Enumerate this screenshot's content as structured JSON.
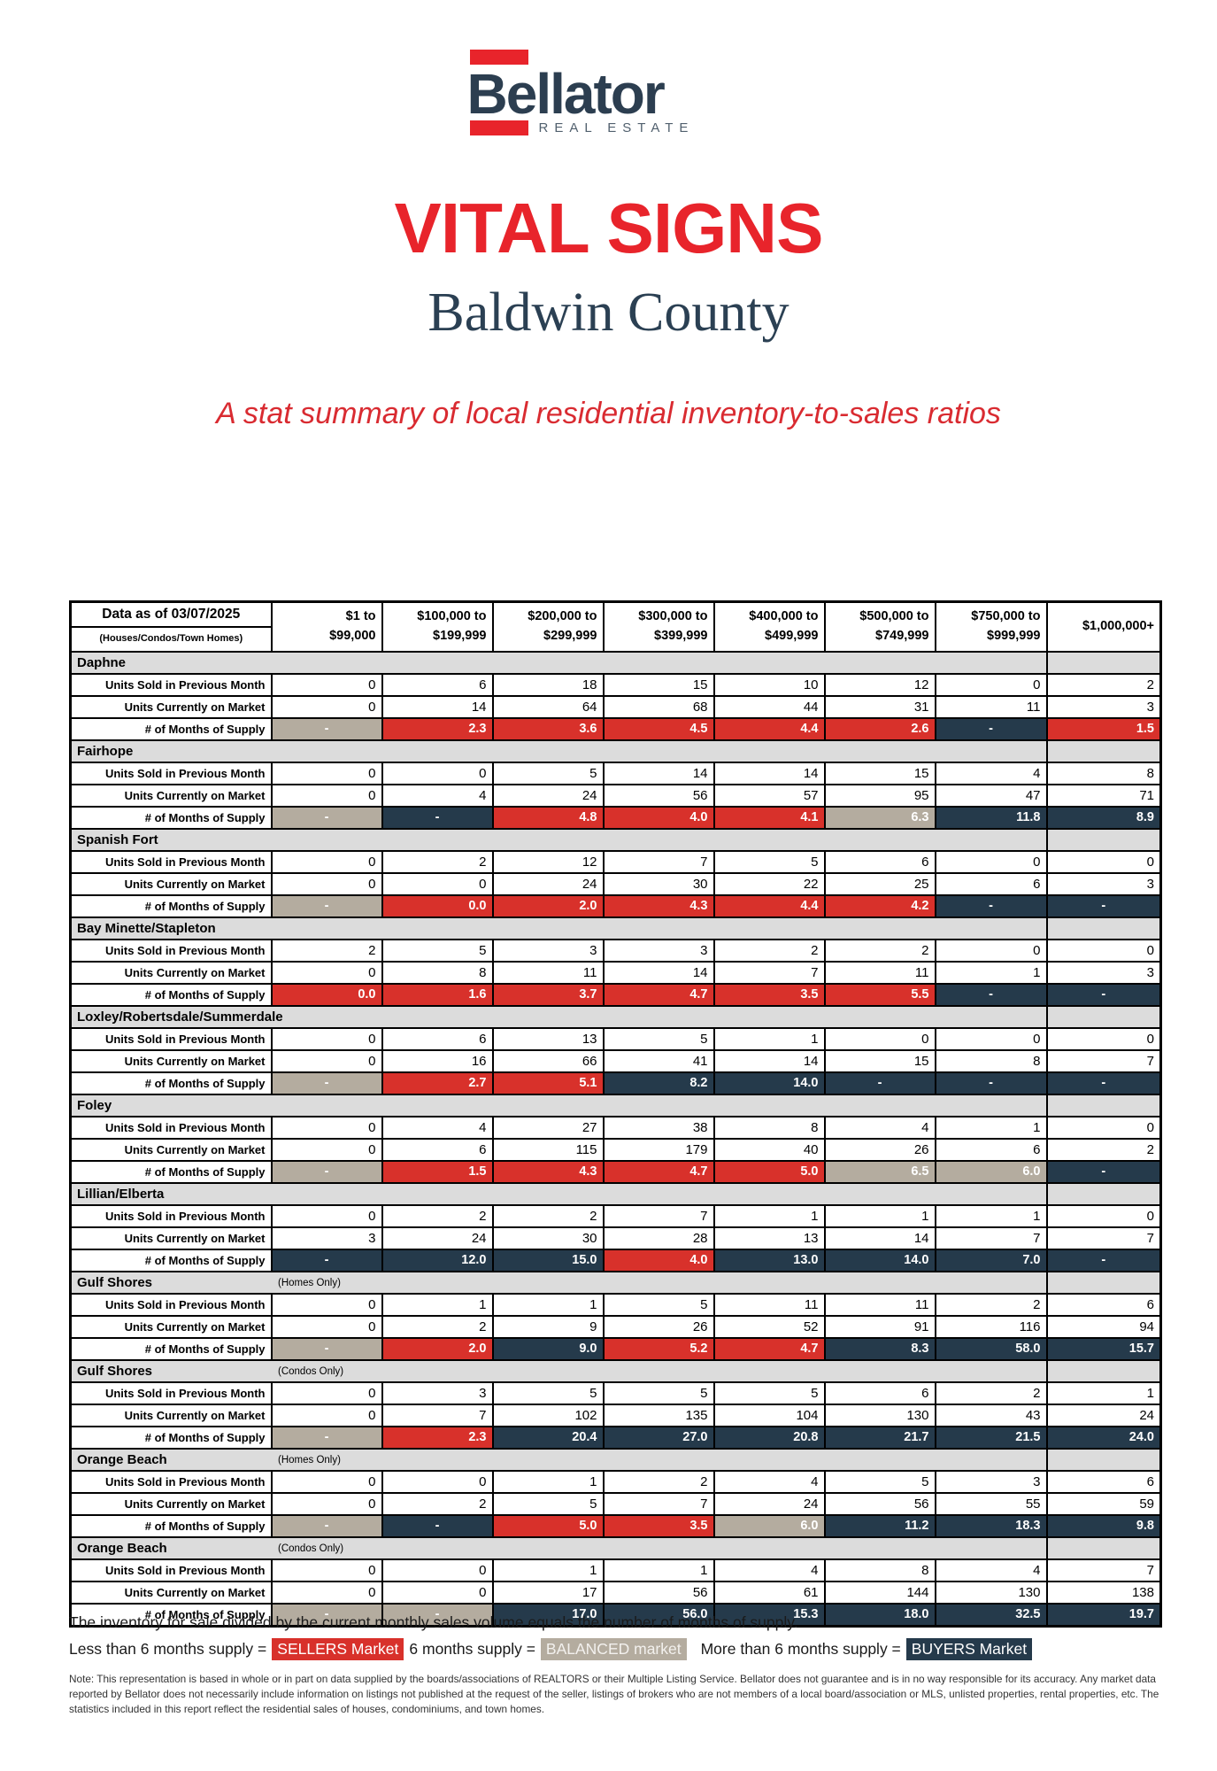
{
  "brand": {
    "name": "Bellator",
    "tagline": "REAL ESTATE"
  },
  "title": "VITAL SIGNS",
  "subtitle": "Baldwin County",
  "tagline": "A stat summary of local residential inventory-to-sales ratios",
  "colors": {
    "sellers_red": "#D8312B",
    "buyers_navy": "#253A4B",
    "balanced_taupe": "#B4AC9F",
    "accent_red": "#E8242B",
    "brand_navy": "#2C3E50",
    "section_gray": "#DCDCDC"
  },
  "table": {
    "header_label_line1": "Data as of 03/07/2025",
    "header_label_line2": "(Houses/Condos/Town Homes)",
    "price_columns": [
      {
        "line1": "$1 to",
        "line2": "$99,000"
      },
      {
        "line1": "$100,000 to",
        "line2": "$199,999"
      },
      {
        "line1": "$200,000 to",
        "line2": "$299,999"
      },
      {
        "line1": "$300,000 to",
        "line2": "$399,999"
      },
      {
        "line1": "$400,000 to",
        "line2": "$499,999"
      },
      {
        "line1": "$500,000 to",
        "line2": "$749,999"
      },
      {
        "line1": "$750,000 to",
        "line2": "$999,999"
      },
      {
        "line1": "$1,000,000+",
        "line2": ""
      }
    ],
    "row_labels": {
      "sold": "Units Sold in Previous Month",
      "market": "Units Currently on Market",
      "supply": "# of Months of Supply"
    },
    "sections": [
      {
        "name": "Daphne",
        "note": "",
        "sold": [
          0,
          6,
          18,
          15,
          10,
          12,
          0,
          2
        ],
        "market": [
          0,
          14,
          64,
          68,
          44,
          31,
          11,
          3
        ],
        "supply": [
          {
            "v": "-",
            "t": "balanced"
          },
          {
            "v": "2.3",
            "t": "sellers"
          },
          {
            "v": "3.6",
            "t": "sellers"
          },
          {
            "v": "4.5",
            "t": "sellers"
          },
          {
            "v": "4.4",
            "t": "sellers"
          },
          {
            "v": "2.6",
            "t": "sellers"
          },
          {
            "v": "-",
            "t": "buyers"
          },
          {
            "v": "1.5",
            "t": "sellers"
          }
        ]
      },
      {
        "name": "Fairhope",
        "note": "",
        "sold": [
          0,
          0,
          5,
          14,
          14,
          15,
          4,
          8
        ],
        "market": [
          0,
          4,
          24,
          56,
          57,
          95,
          47,
          71
        ],
        "supply": [
          {
            "v": "-",
            "t": "balanced"
          },
          {
            "v": "-",
            "t": "buyers"
          },
          {
            "v": "4.8",
            "t": "sellers"
          },
          {
            "v": "4.0",
            "t": "sellers"
          },
          {
            "v": "4.1",
            "t": "sellers"
          },
          {
            "v": "6.3",
            "t": "balanced"
          },
          {
            "v": "11.8",
            "t": "buyers"
          },
          {
            "v": "8.9",
            "t": "buyers"
          }
        ]
      },
      {
        "name": "Spanish Fort",
        "note": "",
        "sold": [
          0,
          2,
          12,
          7,
          5,
          6,
          0,
          0
        ],
        "market": [
          0,
          0,
          24,
          30,
          22,
          25,
          6,
          3
        ],
        "supply": [
          {
            "v": "-",
            "t": "balanced"
          },
          {
            "v": "0.0",
            "t": "sellers"
          },
          {
            "v": "2.0",
            "t": "sellers"
          },
          {
            "v": "4.3",
            "t": "sellers"
          },
          {
            "v": "4.4",
            "t": "sellers"
          },
          {
            "v": "4.2",
            "t": "sellers"
          },
          {
            "v": "-",
            "t": "buyers"
          },
          {
            "v": "-",
            "t": "buyers"
          }
        ]
      },
      {
        "name": "Bay Minette/Stapleton",
        "note": "",
        "sold": [
          2,
          5,
          3,
          3,
          2,
          2,
          0,
          0
        ],
        "market": [
          0,
          8,
          11,
          14,
          7,
          11,
          1,
          3
        ],
        "supply": [
          {
            "v": "0.0",
            "t": "sellers"
          },
          {
            "v": "1.6",
            "t": "sellers"
          },
          {
            "v": "3.7",
            "t": "sellers"
          },
          {
            "v": "4.7",
            "t": "sellers"
          },
          {
            "v": "3.5",
            "t": "sellers"
          },
          {
            "v": "5.5",
            "t": "sellers"
          },
          {
            "v": "-",
            "t": "buyers"
          },
          {
            "v": "-",
            "t": "buyers"
          }
        ]
      },
      {
        "name": "Loxley/Robertsdale/Summerdale",
        "note": "",
        "sold": [
          0,
          6,
          13,
          5,
          1,
          0,
          0,
          0
        ],
        "market": [
          0,
          16,
          66,
          41,
          14,
          15,
          8,
          7
        ],
        "supply": [
          {
            "v": "-",
            "t": "balanced"
          },
          {
            "v": "2.7",
            "t": "sellers"
          },
          {
            "v": "5.1",
            "t": "sellers"
          },
          {
            "v": "8.2",
            "t": "buyers"
          },
          {
            "v": "14.0",
            "t": "buyers"
          },
          {
            "v": "-",
            "t": "buyers"
          },
          {
            "v": "-",
            "t": "buyers"
          },
          {
            "v": "-",
            "t": "buyers"
          }
        ]
      },
      {
        "name": "Foley",
        "note": "",
        "sold": [
          0,
          4,
          27,
          38,
          8,
          4,
          1,
          0
        ],
        "market": [
          0,
          6,
          115,
          179,
          40,
          26,
          6,
          2
        ],
        "supply": [
          {
            "v": "-",
            "t": "balanced"
          },
          {
            "v": "1.5",
            "t": "sellers"
          },
          {
            "v": "4.3",
            "t": "sellers"
          },
          {
            "v": "4.7",
            "t": "sellers"
          },
          {
            "v": "5.0",
            "t": "sellers"
          },
          {
            "v": "6.5",
            "t": "balanced"
          },
          {
            "v": "6.0",
            "t": "balanced"
          },
          {
            "v": "-",
            "t": "buyers"
          }
        ]
      },
      {
        "name": "Lillian/Elberta",
        "note": "",
        "sold": [
          0,
          2,
          2,
          7,
          1,
          1,
          1,
          0
        ],
        "market": [
          3,
          24,
          30,
          28,
          13,
          14,
          7,
          7
        ],
        "supply": [
          {
            "v": "-",
            "t": "buyers"
          },
          {
            "v": "12.0",
            "t": "buyers"
          },
          {
            "v": "15.0",
            "t": "buyers"
          },
          {
            "v": "4.0",
            "t": "sellers"
          },
          {
            "v": "13.0",
            "t": "buyers"
          },
          {
            "v": "14.0",
            "t": "buyers"
          },
          {
            "v": "7.0",
            "t": "buyers"
          },
          {
            "v": "-",
            "t": "buyers"
          }
        ]
      },
      {
        "name": "Gulf Shores",
        "note": "(Homes Only)",
        "sold": [
          0,
          1,
          1,
          5,
          11,
          11,
          2,
          6
        ],
        "market": [
          0,
          2,
          9,
          26,
          52,
          91,
          116,
          94
        ],
        "supply": [
          {
            "v": "-",
            "t": "balanced"
          },
          {
            "v": "2.0",
            "t": "sellers"
          },
          {
            "v": "9.0",
            "t": "buyers"
          },
          {
            "v": "5.2",
            "t": "sellers"
          },
          {
            "v": "4.7",
            "t": "sellers"
          },
          {
            "v": "8.3",
            "t": "buyers"
          },
          {
            "v": "58.0",
            "t": "buyers"
          },
          {
            "v": "15.7",
            "t": "buyers"
          }
        ]
      },
      {
        "name": "Gulf Shores",
        "note": "(Condos Only)",
        "sold": [
          0,
          3,
          5,
          5,
          5,
          6,
          2,
          1
        ],
        "market": [
          0,
          7,
          102,
          135,
          104,
          130,
          43,
          24
        ],
        "supply": [
          {
            "v": "-",
            "t": "balanced"
          },
          {
            "v": "2.3",
            "t": "sellers"
          },
          {
            "v": "20.4",
            "t": "buyers"
          },
          {
            "v": "27.0",
            "t": "buyers"
          },
          {
            "v": "20.8",
            "t": "buyers"
          },
          {
            "v": "21.7",
            "t": "buyers"
          },
          {
            "v": "21.5",
            "t": "buyers"
          },
          {
            "v": "24.0",
            "t": "buyers"
          }
        ]
      },
      {
        "name": "Orange Beach",
        "note": "(Homes Only)",
        "sold": [
          0,
          0,
          1,
          2,
          4,
          5,
          3,
          6
        ],
        "market": [
          0,
          2,
          5,
          7,
          24,
          56,
          55,
          59
        ],
        "supply": [
          {
            "v": "-",
            "t": "balanced"
          },
          {
            "v": "-",
            "t": "buyers"
          },
          {
            "v": "5.0",
            "t": "sellers"
          },
          {
            "v": "3.5",
            "t": "sellers"
          },
          {
            "v": "6.0",
            "t": "balanced"
          },
          {
            "v": "11.2",
            "t": "buyers"
          },
          {
            "v": "18.3",
            "t": "buyers"
          },
          {
            "v": "9.8",
            "t": "buyers"
          }
        ]
      },
      {
        "name": "Orange Beach",
        "note": "(Condos Only)",
        "sold": [
          0,
          0,
          1,
          1,
          4,
          8,
          4,
          7
        ],
        "market": [
          0,
          0,
          17,
          56,
          61,
          144,
          130,
          138
        ],
        "supply": [
          {
            "v": "-",
            "t": "balanced"
          },
          {
            "v": "-",
            "t": "balanced"
          },
          {
            "v": "17.0",
            "t": "buyers"
          },
          {
            "v": "56.0",
            "t": "buyers"
          },
          {
            "v": "15.3",
            "t": "buyers"
          },
          {
            "v": "18.0",
            "t": "buyers"
          },
          {
            "v": "32.5",
            "t": "buyers"
          },
          {
            "v": "19.7",
            "t": "buyers"
          }
        ]
      }
    ]
  },
  "legend": {
    "intro": "The inventory for sale divided by the current monthly sales volume equals the number of months of supply.",
    "sellers_prefix": "Less than 6 months supply =",
    "sellers_chip": "SELLERS Market",
    "balanced_prefix": "6 months supply =",
    "balanced_chip": "BALANCED market",
    "buyers_prefix": "More than 6 months supply =",
    "buyers_chip": "BUYERS Market"
  },
  "note": "Note: This representation is based in whole or in part on data supplied by the boards/associations of REALTORS or their Multiple Listing Service. Bellator does not guarantee and is in no way responsible for its accuracy. Any market data reported by Bellator does not necessarily include information on listings not published at the request of the seller, listings of brokers who are not members of a local board/association or MLS, unlisted properties, rental properties, etc. The statistics included in this report reflect the residential sales of houses, condominiums, and town homes."
}
